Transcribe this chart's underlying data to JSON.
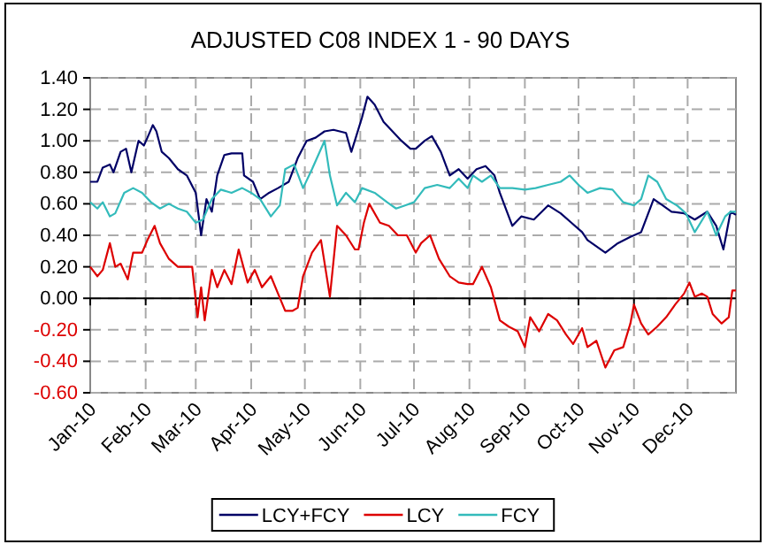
{
  "chart_data": {
    "type": "line",
    "title": "ADJUSTED C08 INDEX 1 - 90 DAYS",
    "xlim": [
      "2010-01-01",
      "2010-12-28"
    ],
    "xticks": [
      {
        "value": "2010-01-01",
        "label": "Jan-10"
      },
      {
        "value": "2010-02-01",
        "label": "Feb-10"
      },
      {
        "value": "2010-03-01",
        "label": "Mar-10"
      },
      {
        "value": "2010-04-01",
        "label": "Apr-10"
      },
      {
        "value": "2010-05-01",
        "label": "May-10"
      },
      {
        "value": "2010-06-01",
        "label": "Jun-10"
      },
      {
        "value": "2010-07-01",
        "label": "Jul-10"
      },
      {
        "value": "2010-08-01",
        "label": "Aug-10"
      },
      {
        "value": "2010-09-01",
        "label": "Sep-10"
      },
      {
        "value": "2010-10-01",
        "label": "Oct-10"
      },
      {
        "value": "2010-11-01",
        "label": "Nov-10"
      },
      {
        "value": "2010-12-01",
        "label": "Dec-10"
      }
    ],
    "ylim": [
      -0.6,
      1.4
    ],
    "yticks": [
      {
        "value": -0.6,
        "label": "-0.60"
      },
      {
        "value": -0.4,
        "label": "-0.40"
      },
      {
        "value": -0.2,
        "label": "-0.20"
      },
      {
        "value": 0,
        "label": "0.00"
      },
      {
        "value": 0.2,
        "label": "0.20"
      },
      {
        "value": 0.4,
        "label": "0.40"
      },
      {
        "value": 0.6,
        "label": "0.60"
      },
      {
        "value": 0.8,
        "label": "0.80"
      },
      {
        "value": 1.0,
        "label": "1.00"
      },
      {
        "value": 1.2,
        "label": "1.20"
      },
      {
        "value": 1.4,
        "label": "1.40"
      }
    ],
    "ref_lines": [
      {
        "axis": "y",
        "value": 0,
        "color": "#000000"
      }
    ],
    "grid": true,
    "legend": "bottom",
    "marker": "none",
    "line_style": "solid",
    "series": [
      {
        "name": "LCY+FCY",
        "color": "#000066",
        "x": [
          "2010-01-01",
          "2010-01-05",
          "2010-01-08",
          "2010-01-12",
          "2010-01-14",
          "2010-01-18",
          "2010-01-21",
          "2010-01-24",
          "2010-01-28",
          "2010-01-31",
          "2010-02-02",
          "2010-02-05",
          "2010-02-07",
          "2010-02-10",
          "2010-02-14",
          "2010-02-19",
          "2010-02-24",
          "2010-03-01",
          "2010-03-04",
          "2010-03-07",
          "2010-03-10",
          "2010-03-13",
          "2010-03-17",
          "2010-03-21",
          "2010-03-27",
          "2010-03-28",
          "2010-04-02",
          "2010-04-06",
          "2010-04-11",
          "2010-04-16",
          "2010-04-22",
          "2010-04-27",
          "2010-05-02",
          "2010-05-07",
          "2010-05-12",
          "2010-05-17",
          "2010-05-24",
          "2010-05-27",
          "2010-05-30",
          "2010-06-02",
          "2010-06-05",
          "2010-06-09",
          "2010-06-14",
          "2010-06-19",
          "2010-06-24",
          "2010-06-29",
          "2010-07-02",
          "2010-07-07",
          "2010-07-11",
          "2010-07-16",
          "2010-07-21",
          "2010-07-26",
          "2010-07-31",
          "2010-08-05",
          "2010-08-10",
          "2010-08-15",
          "2010-08-18",
          "2010-08-22",
          "2010-08-25",
          "2010-08-30",
          "2010-09-06",
          "2010-09-14",
          "2010-09-21",
          "2010-09-27",
          "2010-10-03",
          "2010-10-06",
          "2010-10-16",
          "2010-10-23",
          "2010-10-30",
          "2010-11-05",
          "2010-11-12",
          "2010-11-17",
          "2010-11-22",
          "2010-11-29",
          "2010-12-05",
          "2010-12-12",
          "2010-12-17",
          "2010-12-21",
          "2010-12-25",
          "2010-12-28"
        ],
        "values": [
          0.74,
          0.74,
          0.83,
          0.85,
          0.8,
          0.93,
          0.95,
          0.8,
          1.0,
          0.97,
          1.02,
          1.1,
          1.06,
          0.93,
          0.89,
          0.82,
          0.78,
          0.67,
          0.4,
          0.63,
          0.55,
          0.78,
          0.91,
          0.92,
          0.92,
          0.78,
          0.74,
          0.63,
          0.67,
          0.7,
          0.74,
          0.89,
          1.0,
          1.02,
          1.06,
          1.07,
          1.05,
          0.93,
          1.04,
          1.15,
          1.28,
          1.23,
          1.12,
          1.06,
          1.0,
          0.95,
          0.95,
          1.0,
          1.03,
          0.93,
          0.78,
          0.82,
          0.76,
          0.82,
          0.84,
          0.78,
          0.67,
          0.55,
          0.46,
          0.52,
          0.5,
          0.59,
          0.54,
          0.48,
          0.42,
          0.37,
          0.29,
          0.35,
          0.39,
          0.42,
          0.63,
          0.59,
          0.55,
          0.54,
          0.5,
          0.55,
          0.46,
          0.31,
          0.55,
          0.53
        ]
      },
      {
        "name": "LCY",
        "color": "#dd0000",
        "x": [
          "2010-01-01",
          "2010-01-05",
          "2010-01-08",
          "2010-01-12",
          "2010-01-15",
          "2010-01-18",
          "2010-01-22",
          "2010-01-25",
          "2010-01-30",
          "2010-02-02",
          "2010-02-06",
          "2010-02-09",
          "2010-02-14",
          "2010-02-19",
          "2010-02-24",
          "2010-02-27",
          "2010-03-02",
          "2010-03-04",
          "2010-03-06",
          "2010-03-10",
          "2010-03-13",
          "2010-03-17",
          "2010-03-21",
          "2010-03-25",
          "2010-03-30",
          "2010-04-03",
          "2010-04-07",
          "2010-04-12",
          "2010-04-16",
          "2010-04-20",
          "2010-04-24",
          "2010-04-27",
          "2010-04-30",
          "2010-05-05",
          "2010-05-10",
          "2010-05-15",
          "2010-05-19",
          "2010-05-24",
          "2010-05-29",
          "2010-05-31",
          "2010-06-03",
          "2010-06-06",
          "2010-06-12",
          "2010-06-17",
          "2010-06-22",
          "2010-06-27",
          "2010-07-02",
          "2010-07-05",
          "2010-07-10",
          "2010-07-15",
          "2010-07-21",
          "2010-07-26",
          "2010-07-31",
          "2010-08-03",
          "2010-08-08",
          "2010-08-13",
          "2010-08-18",
          "2010-08-23",
          "2010-08-28",
          "2010-09-01",
          "2010-09-04",
          "2010-09-09",
          "2010-09-14",
          "2010-09-19",
          "2010-09-24",
          "2010-09-28",
          "2010-10-03",
          "2010-10-06",
          "2010-10-11",
          "2010-10-16",
          "2010-10-21",
          "2010-10-26",
          "2010-10-30",
          "2010-11-01",
          "2010-11-05",
          "2010-11-09",
          "2010-11-14",
          "2010-11-19",
          "2010-11-24",
          "2010-11-29",
          "2010-12-02",
          "2010-12-05",
          "2010-12-09",
          "2010-12-12",
          "2010-12-15",
          "2010-12-20",
          "2010-12-24",
          "2010-12-26",
          "2010-12-28"
        ],
        "values": [
          0.2,
          0.14,
          0.18,
          0.35,
          0.2,
          0.22,
          0.12,
          0.29,
          0.29,
          0.37,
          0.46,
          0.35,
          0.25,
          0.2,
          0.2,
          0.2,
          -0.12,
          0.07,
          -0.14,
          0.18,
          0.07,
          0.18,
          0.09,
          0.31,
          0.1,
          0.18,
          0.07,
          0.14,
          0.03,
          -0.08,
          -0.08,
          -0.06,
          0.14,
          0.29,
          0.37,
          0.01,
          0.46,
          0.4,
          0.31,
          0.31,
          0.48,
          0.6,
          0.48,
          0.46,
          0.4,
          0.4,
          0.29,
          0.35,
          0.4,
          0.25,
          0.14,
          0.1,
          0.09,
          0.09,
          0.2,
          0.07,
          -0.14,
          -0.18,
          -0.21,
          -0.31,
          -0.12,
          -0.21,
          -0.1,
          -0.14,
          -0.23,
          -0.29,
          -0.19,
          -0.31,
          -0.27,
          -0.44,
          -0.33,
          -0.31,
          -0.16,
          -0.04,
          -0.16,
          -0.23,
          -0.18,
          -0.12,
          -0.04,
          0.03,
          0.1,
          0.01,
          0.03,
          0.01,
          -0.1,
          -0.16,
          -0.12,
          0.05,
          0.05
        ]
      },
      {
        "name": "FCY",
        "color": "#33bbbb",
        "x": [
          "2010-01-01",
          "2010-01-05",
          "2010-01-08",
          "2010-01-12",
          "2010-01-15",
          "2010-01-20",
          "2010-01-25",
          "2010-01-30",
          "2010-02-04",
          "2010-02-09",
          "2010-02-14",
          "2010-02-19",
          "2010-02-24",
          "2010-03-01",
          "2010-03-05",
          "2010-03-10",
          "2010-03-15",
          "2010-03-21",
          "2010-03-27",
          "2010-04-01",
          "2010-04-06",
          "2010-04-12",
          "2010-04-17",
          "2010-04-20",
          "2010-04-25",
          "2010-04-30",
          "2010-05-05",
          "2010-05-12",
          "2010-05-15",
          "2010-05-19",
          "2010-05-24",
          "2010-05-29",
          "2010-06-02",
          "2010-06-09",
          "2010-06-16",
          "2010-06-21",
          "2010-06-26",
          "2010-07-01",
          "2010-07-07",
          "2010-07-14",
          "2010-07-21",
          "2010-07-26",
          "2010-07-31",
          "2010-08-03",
          "2010-08-08",
          "2010-08-13",
          "2010-08-18",
          "2010-08-25",
          "2010-09-01",
          "2010-09-07",
          "2010-09-14",
          "2010-09-21",
          "2010-09-26",
          "2010-10-01",
          "2010-10-06",
          "2010-10-13",
          "2010-10-20",
          "2010-10-26",
          "2010-11-01",
          "2010-11-05",
          "2010-11-09",
          "2010-11-14",
          "2010-11-19",
          "2010-11-25",
          "2010-11-30",
          "2010-12-05",
          "2010-12-12",
          "2010-12-17",
          "2010-12-22",
          "2010-12-25",
          "2010-12-28"
        ],
        "values": [
          0.61,
          0.57,
          0.61,
          0.52,
          0.54,
          0.67,
          0.7,
          0.67,
          0.61,
          0.57,
          0.6,
          0.57,
          0.55,
          0.48,
          0.5,
          0.63,
          0.69,
          0.67,
          0.7,
          0.67,
          0.63,
          0.52,
          0.59,
          0.82,
          0.85,
          0.7,
          0.82,
          1.0,
          0.78,
          0.59,
          0.67,
          0.61,
          0.7,
          0.67,
          0.61,
          0.57,
          0.59,
          0.61,
          0.7,
          0.72,
          0.7,
          0.76,
          0.7,
          0.78,
          0.74,
          0.78,
          0.7,
          0.7,
          0.69,
          0.7,
          0.72,
          0.74,
          0.78,
          0.72,
          0.67,
          0.7,
          0.69,
          0.61,
          0.59,
          0.63,
          0.78,
          0.74,
          0.63,
          0.59,
          0.54,
          0.42,
          0.55,
          0.4,
          0.52,
          0.55,
          0.55
        ]
      }
    ]
  }
}
